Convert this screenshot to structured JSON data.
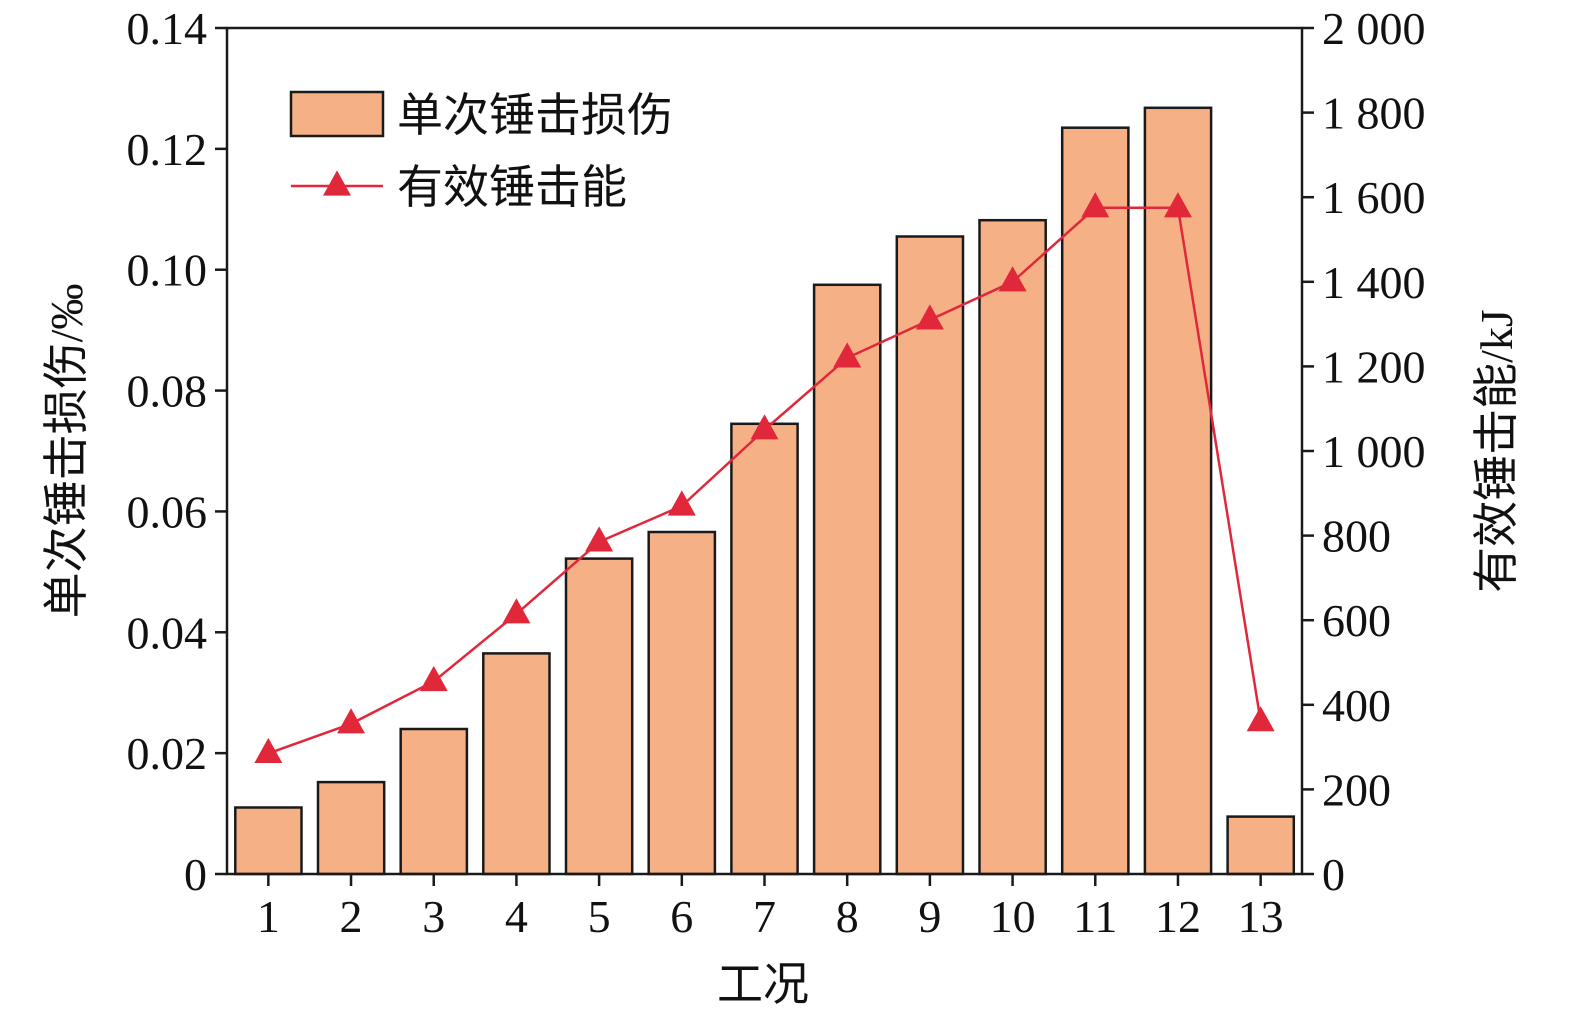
{
  "chart_data": {
    "type": "bar",
    "categories": [
      "1",
      "2",
      "3",
      "4",
      "5",
      "6",
      "7",
      "8",
      "9",
      "10",
      "11",
      "12",
      "13"
    ],
    "series": [
      {
        "name": "单次锤击损伤",
        "type": "bar",
        "axis": "left",
        "values": [
          0.011,
          0.0152,
          0.024,
          0.0365,
          0.0522,
          0.0566,
          0.0745,
          0.0975,
          0.1055,
          0.1082,
          0.1235,
          0.1268,
          0.0095
        ]
      },
      {
        "name": "有效锤击能",
        "type": "line",
        "axis": "right",
        "marker": "triangle",
        "values": [
          285,
          355,
          455,
          615,
          785,
          870,
          1050,
          1220,
          1310,
          1400,
          1575,
          1575,
          360
        ]
      }
    ],
    "xlabel": "工况",
    "ylabel_left": "单次锤击损伤/‰",
    "ylabel_right": "有效锤击能/kJ",
    "ylim_left": [
      0,
      0.14
    ],
    "ylim_right": [
      0,
      2000
    ],
    "yticks_left": [
      "0",
      "0.02",
      "0.04",
      "0.06",
      "0.08",
      "0.10",
      "0.12",
      "0.14"
    ],
    "yticks_right": [
      "0",
      "200",
      "400",
      "600",
      "800",
      "1 000",
      "1 200",
      "1 400",
      "1 600",
      "1 800",
      "2 000"
    ],
    "grid": false,
    "legend_position": "top-left",
    "colors": {
      "bar_fill": "#f5b185",
      "bar_stroke": "#1a1a1a",
      "line": "#e0283a",
      "axis": "#1a1a1a"
    }
  }
}
